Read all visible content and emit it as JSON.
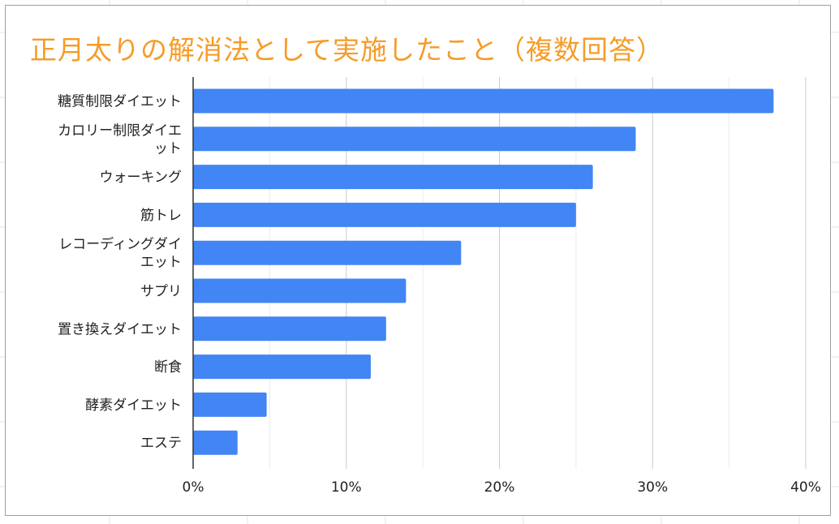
{
  "chart_data": {
    "type": "bar",
    "orientation": "horizontal",
    "title": "正月太りの解消法として実施したこと（複数回答）",
    "categories": [
      [
        "糖質制限ダイエット"
      ],
      [
        "カロリー制限ダイエ",
        "ット"
      ],
      [
        "ウォーキング"
      ],
      [
        "筋トレ"
      ],
      [
        "レコーディングダイ",
        "エット"
      ],
      [
        "サプリ"
      ],
      [
        "置き換えダイエット"
      ],
      [
        "断食"
      ],
      [
        "酵素ダイエット"
      ],
      [
        "エステ"
      ]
    ],
    "values": [
      37.9,
      28.9,
      26.1,
      25.0,
      17.5,
      13.9,
      12.6,
      11.6,
      4.8,
      2.9
    ],
    "xlim": [
      0,
      40
    ],
    "xticks": [
      0,
      10,
      20,
      30,
      40
    ],
    "xtick_labels": [
      "0%",
      "10%",
      "20%",
      "30%",
      "40%"
    ],
    "xlabel": "",
    "ylabel": "",
    "grid": true,
    "legend": false,
    "bar_color": "#4285f4",
    "title_color": "#f59c28"
  }
}
